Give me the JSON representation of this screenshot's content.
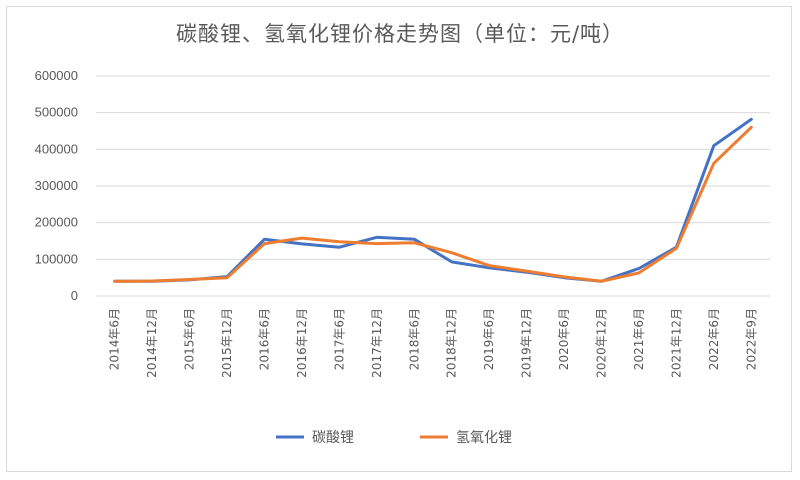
{
  "chart_data": {
    "type": "line",
    "title": "碳酸锂、氢氧化锂价格走势图（单位：元/吨）",
    "categories": [
      "2014年6月",
      "2014年12月",
      "2015年6月",
      "2015年12月",
      "2016年6月",
      "2016年12月",
      "2017年6月",
      "2017年12月",
      "2018年6月",
      "2018年12月",
      "2019年6月",
      "2019年12月",
      "2020年6月",
      "2020年12月",
      "2021年6月",
      "2021年12月",
      "2022年6月",
      "2022年9月"
    ],
    "yticks": [
      "600000",
      "500000",
      "400000",
      "300000",
      "200000",
      "100000",
      "0"
    ],
    "ylim": [
      0,
      600000
    ],
    "grid": true,
    "legend_position": "bottom",
    "series": [
      {
        "name": "碳酸锂",
        "color": "#4472c4",
        "values": [
          40000,
          40000,
          44000,
          53000,
          155000,
          142000,
          133000,
          160000,
          155000,
          93000,
          77000,
          65000,
          50000,
          40000,
          75000,
          133000,
          410000,
          482000
        ]
      },
      {
        "name": "氢氧化锂",
        "color": "#ed7d31",
        "values": [
          40000,
          41000,
          45000,
          50000,
          143000,
          158000,
          148000,
          143000,
          145000,
          118000,
          83000,
          68000,
          52000,
          40000,
          63000,
          130000,
          362000,
          460000
        ]
      }
    ]
  }
}
